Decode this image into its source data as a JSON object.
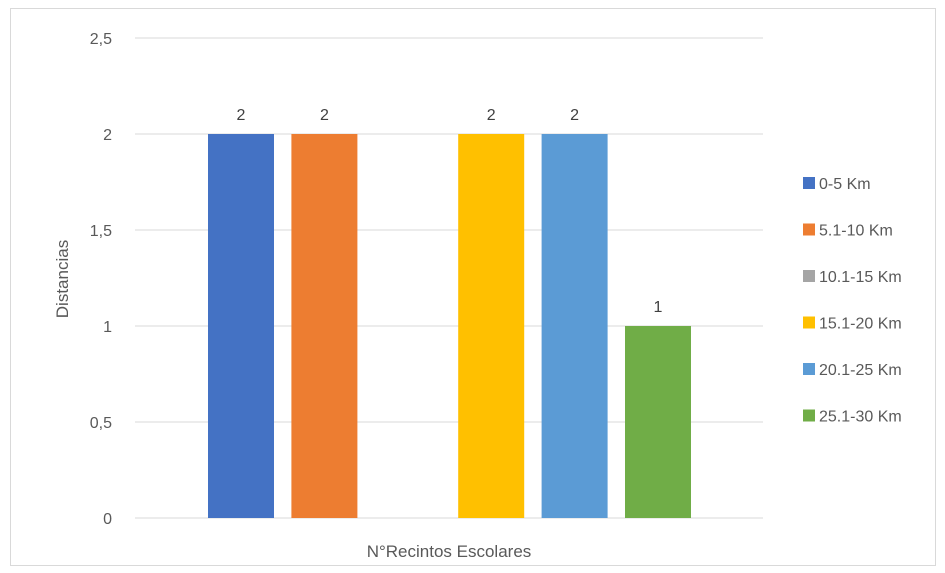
{
  "chart_data": {
    "type": "bar",
    "categories": [
      "N°Recintos Escolares"
    ],
    "series": [
      {
        "name": "0-5 Km",
        "values": [
          2
        ],
        "color": "#4472C4"
      },
      {
        "name": "5.1-10 Km",
        "values": [
          2
        ],
        "color": "#ED7D31"
      },
      {
        "name": "10.1-15 Km",
        "values": [
          0
        ],
        "color": "#A5A5A5"
      },
      {
        "name": "15.1-20 Km",
        "values": [
          2
        ],
        "color": "#FFC000"
      },
      {
        "name": "20.1-25 Km",
        "values": [
          2
        ],
        "color": "#5B9BD5"
      },
      {
        "name": "25.1-30 Km",
        "values": [
          1
        ],
        "color": "#70AD47"
      }
    ],
    "data_labels": [
      "2",
      "2",
      "",
      "2",
      "2",
      "1"
    ],
    "title": "",
    "xlabel": "N°Recintos Escolares",
    "ylabel": "Distancias",
    "ylim": [
      0,
      2.5
    ],
    "yticks": [
      "0",
      "0,5",
      "1",
      "1,5",
      "2",
      "2,5"
    ],
    "grid": true,
    "legend_position": "right"
  }
}
